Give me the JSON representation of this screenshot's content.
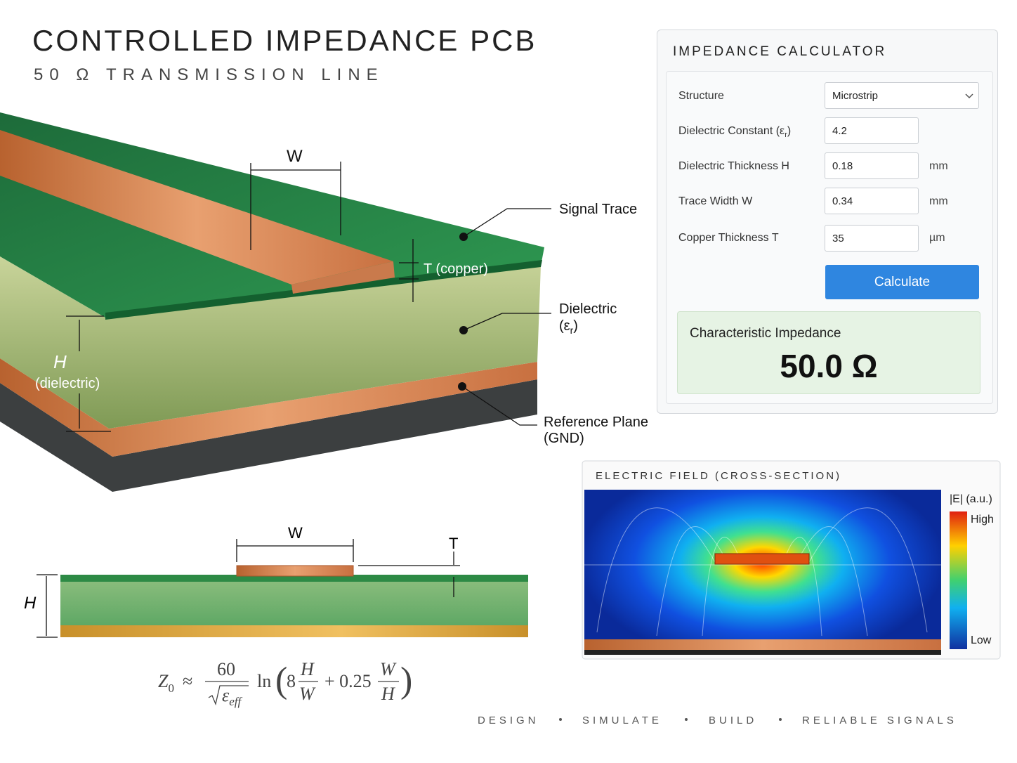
{
  "header": {
    "title": "CONTROLLED IMPEDANCE PCB",
    "subtitle": "50 Ω TRANSMISSION LINE"
  },
  "pcb_3d": {
    "width_label": "W",
    "signal_trace": "Signal Trace",
    "copper_thickness": "T (copper)",
    "dielectric": "Dielectric",
    "dielectric_symbol": {
      "open": "(ε",
      "sub": "r",
      "close": ")"
    },
    "reference_plane": "Reference Plane",
    "reference_plane_note": "(GND)",
    "height_label": "H",
    "height_note": "(dielectric)"
  },
  "calculator": {
    "title": "IMPEDANCE CALCULATOR",
    "structure": {
      "label": "Structure",
      "value": "Microstrip"
    },
    "dielectric_constant": {
      "label": "Dielectric Constant (ε",
      "label_sub": "r",
      "label_close": ")",
      "value": 4.2
    },
    "dielectric_thickness": {
      "label": "Dielectric Thickness H",
      "value": 0.18,
      "unit": "mm"
    },
    "trace_width": {
      "label": "Trace Width W",
      "value": 0.34,
      "unit": "mm"
    },
    "copper_thickness": {
      "label": "Copper Thickness T",
      "value": 35,
      "unit": "µm"
    },
    "button": "Calculate",
    "result": {
      "label": "Characteristic Impedance",
      "value": "50.0 Ω"
    }
  },
  "field_panel": {
    "title": "ELECTRIC FIELD (CROSS-SECTION)",
    "legend_title": "|E| (a.u.)",
    "high": "High",
    "low": "Low"
  },
  "cross_section": {
    "width_label": "W",
    "thickness_label": "T",
    "height_label": "H"
  },
  "formula": {
    "z": "Z",
    "z_sub": "0",
    "approx": "≈",
    "numerator": "60",
    "eps": "ε",
    "eps_sub": "eff",
    "ln": "ln",
    "open": "(",
    "eight": "8",
    "f1_num": "H",
    "f1_den": "W",
    "plus": "+ 0.25",
    "f2_num": "W",
    "f2_den": "H",
    "close": ")"
  },
  "footer": [
    "DESIGN",
    "SIMULATE",
    "BUILD",
    "RELIABLE SIGNALS"
  ]
}
